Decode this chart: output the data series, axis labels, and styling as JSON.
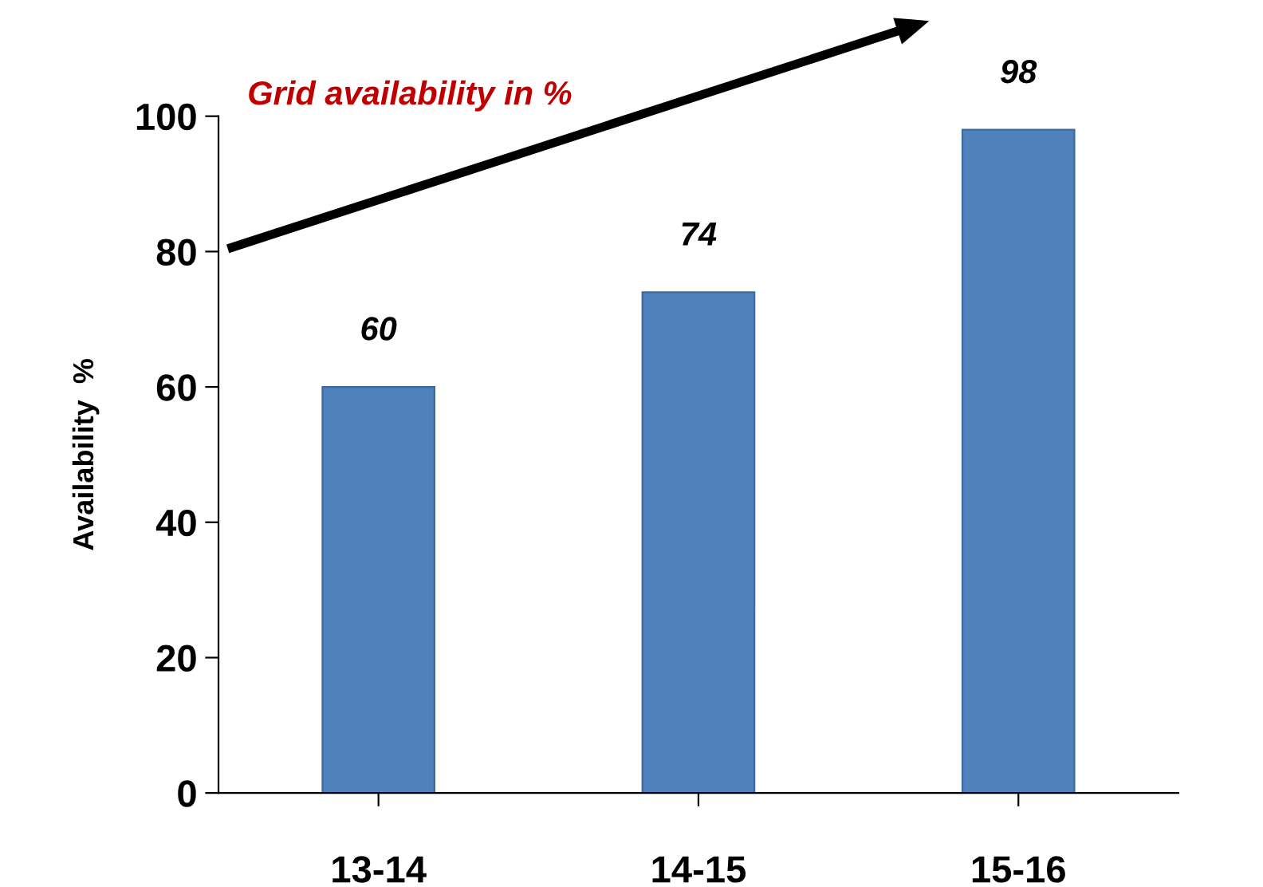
{
  "chart_data": {
    "type": "bar",
    "title": "Grid availability in %",
    "ylabel": "Availability  %",
    "categories": [
      "13-14",
      "14-15",
      "15-16"
    ],
    "values": [
      60,
      74,
      98
    ],
    "color": "#4f81bd",
    "ylim": [
      0,
      100
    ],
    "yticks": [
      0,
      20,
      40,
      60,
      80,
      100
    ],
    "grid": false,
    "data_labels": true
  }
}
